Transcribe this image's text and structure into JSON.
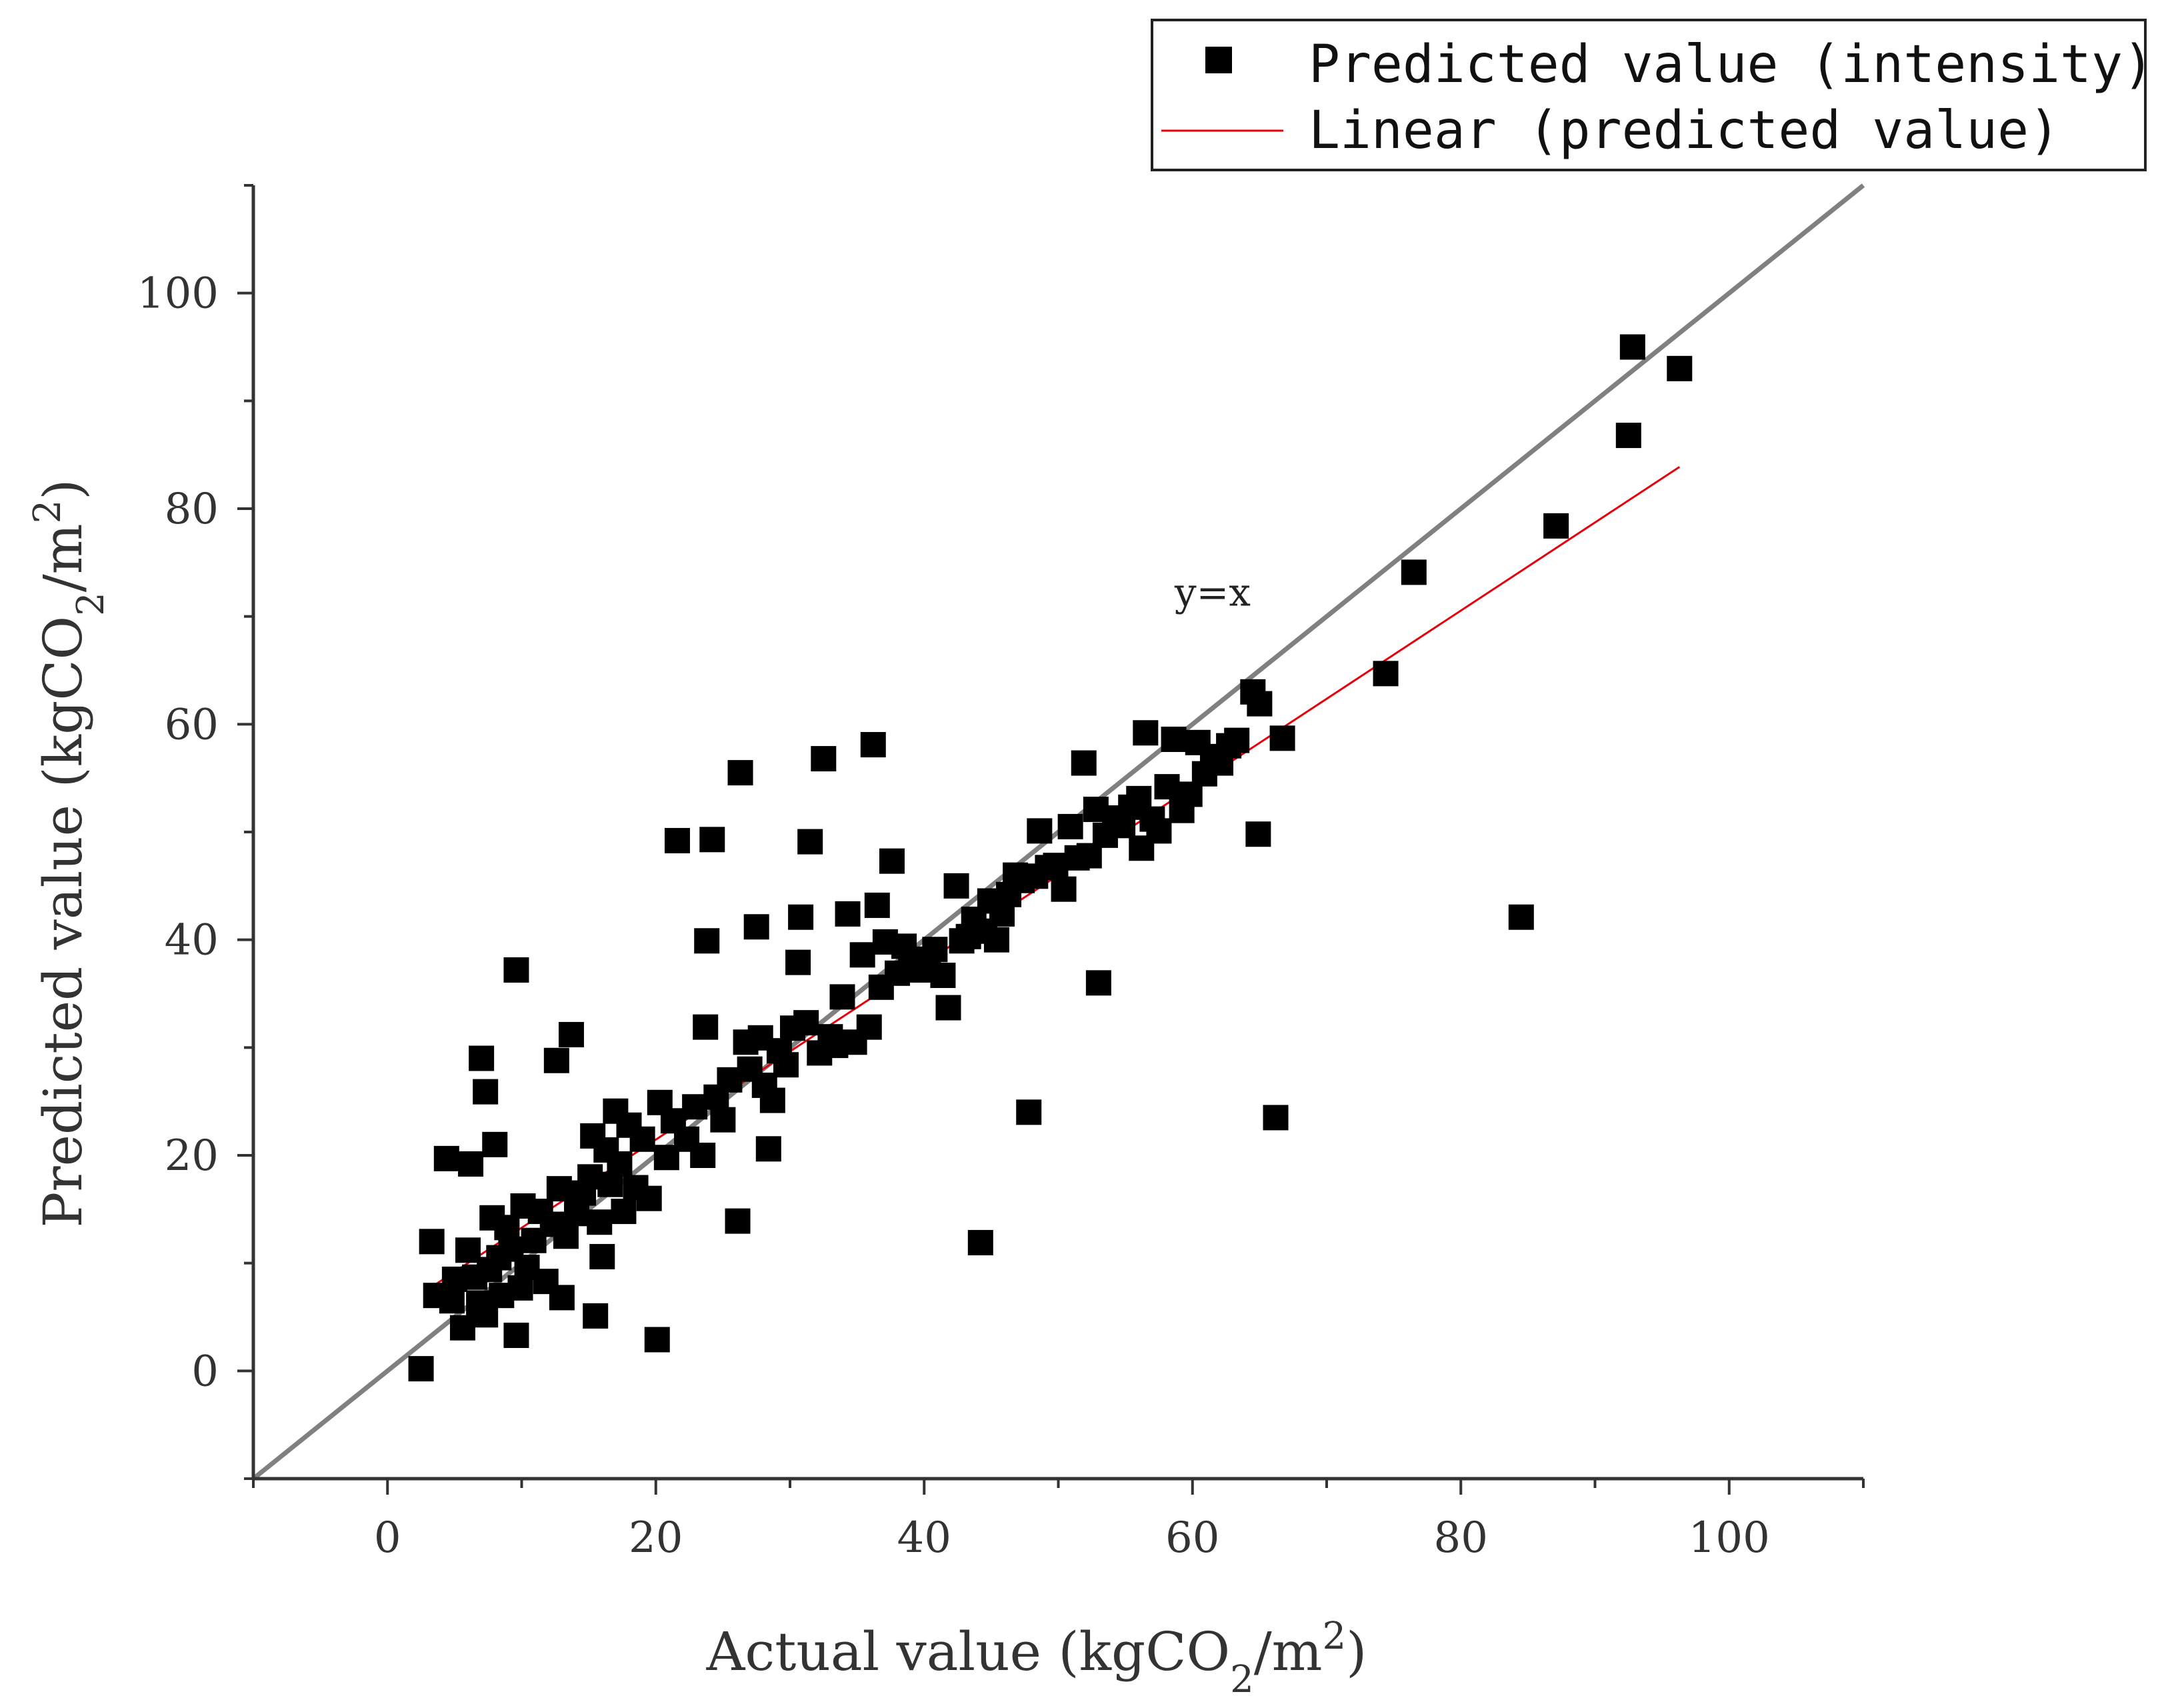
{
  "chart_data": {
    "type": "scatter",
    "title": "",
    "xlabel": "Actual value (kgCO2/m2)",
    "ylabel": "Predicted value (kgCO2/m2)",
    "xlabel_parts": {
      "pre": "Actual value (kgCO",
      "sub": "2",
      "mid": "/m",
      "sup": "2",
      "post": ")"
    },
    "ylabel_parts": {
      "pre": "Predicted value (kgCO",
      "sub": "2",
      "mid": "/m",
      "sup": "2",
      "post": ")"
    },
    "xlim": [
      -10,
      110
    ],
    "ylim": [
      -10,
      110
    ],
    "x_ticks": [
      0,
      20,
      40,
      60,
      80,
      100
    ],
    "y_ticks": [
      0,
      20,
      40,
      60,
      80,
      100
    ],
    "x_tick_labels": [
      "0",
      "20",
      "40",
      "60",
      "80",
      "100"
    ],
    "y_tick_labels": [
      "0",
      "20",
      "40",
      "60",
      "80",
      "100"
    ],
    "grid": false,
    "legend_position": "top-right, outside plot",
    "colors": {
      "points": "#000000",
      "fit_line": "#e8000b",
      "identity_line": "#808080",
      "axis": "#333333"
    },
    "series": [
      {
        "name": "Predicted value (intensity)",
        "kind": "scatter",
        "marker": "square",
        "points": [
          [
            2.5,
            0.2
          ],
          [
            3.3,
            12.0
          ],
          [
            3.6,
            7.0
          ],
          [
            4.4,
            19.7
          ],
          [
            4.8,
            6.5
          ],
          [
            5.0,
            8.5
          ],
          [
            5.6,
            4.0
          ],
          [
            6.0,
            11.2
          ],
          [
            6.2,
            19.2
          ],
          [
            6.5,
            8.7
          ],
          [
            6.8,
            6.3
          ],
          [
            7.0,
            29.0
          ],
          [
            7.3,
            25.9
          ],
          [
            7.3,
            5.2
          ],
          [
            7.6,
            9.4
          ],
          [
            7.8,
            14.2
          ],
          [
            8.0,
            21.0
          ],
          [
            8.3,
            10.5
          ],
          [
            8.5,
            7.0
          ],
          [
            8.9,
            13.3
          ],
          [
            9.2,
            11.3
          ],
          [
            9.6,
            37.2
          ],
          [
            9.6,
            3.3
          ],
          [
            9.9,
            7.7
          ],
          [
            10.1,
            15.3
          ],
          [
            10.4,
            9.6
          ],
          [
            10.9,
            12.1
          ],
          [
            11.4,
            14.8
          ],
          [
            11.8,
            8.3
          ],
          [
            12.3,
            13.6
          ],
          [
            12.6,
            28.8
          ],
          [
            12.8,
            16.9
          ],
          [
            13.0,
            6.8
          ],
          [
            13.3,
            12.5
          ],
          [
            13.7,
            31.2
          ],
          [
            14.1,
            14.6
          ],
          [
            14.6,
            16.5
          ],
          [
            15.1,
            18.0
          ],
          [
            15.3,
            21.8
          ],
          [
            15.5,
            5.1
          ],
          [
            15.8,
            13.8
          ],
          [
            16.0,
            10.6
          ],
          [
            16.3,
            20.5
          ],
          [
            16.6,
            17.3
          ],
          [
            17.0,
            24.1
          ],
          [
            17.3,
            19.2
          ],
          [
            17.6,
            14.8
          ],
          [
            18.0,
            22.8
          ],
          [
            18.5,
            17.0
          ],
          [
            19.0,
            21.5
          ],
          [
            19.5,
            16.0
          ],
          [
            20.1,
            2.9
          ],
          [
            20.3,
            24.9
          ],
          [
            20.8,
            19.8
          ],
          [
            21.3,
            23.2
          ],
          [
            21.6,
            49.2
          ],
          [
            22.3,
            21.5
          ],
          [
            22.9,
            24.5
          ],
          [
            23.5,
            20.0
          ],
          [
            23.7,
            31.9
          ],
          [
            23.8,
            39.9
          ],
          [
            24.2,
            49.3
          ],
          [
            24.5,
            25.4
          ],
          [
            25.0,
            23.3
          ],
          [
            25.5,
            27.0
          ],
          [
            26.1,
            13.9
          ],
          [
            26.3,
            55.5
          ],
          [
            26.7,
            30.5
          ],
          [
            27.0,
            28.0
          ],
          [
            27.5,
            41.2
          ],
          [
            27.8,
            30.9
          ],
          [
            28.1,
            26.5
          ],
          [
            28.4,
            20.6
          ],
          [
            28.7,
            25.1
          ],
          [
            29.2,
            29.7
          ],
          [
            29.7,
            28.4
          ],
          [
            30.2,
            31.8
          ],
          [
            30.6,
            37.9
          ],
          [
            30.8,
            42.1
          ],
          [
            31.2,
            32.3
          ],
          [
            31.5,
            49.1
          ],
          [
            32.2,
            29.5
          ],
          [
            32.5,
            56.8
          ],
          [
            33.0,
            31.0
          ],
          [
            33.4,
            30.2
          ],
          [
            33.9,
            34.7
          ],
          [
            34.3,
            42.4
          ],
          [
            34.8,
            30.5
          ],
          [
            35.4,
            38.6
          ],
          [
            35.9,
            31.9
          ],
          [
            36.2,
            58.1
          ],
          [
            36.5,
            43.2
          ],
          [
            36.8,
            35.6
          ],
          [
            37.1,
            39.8
          ],
          [
            37.6,
            47.3
          ],
          [
            38.0,
            36.9
          ],
          [
            38.5,
            39.4
          ],
          [
            39.0,
            37.6
          ],
          [
            39.6,
            37.2
          ],
          [
            40.3,
            38.2
          ],
          [
            40.8,
            39.1
          ],
          [
            41.4,
            36.7
          ],
          [
            41.8,
            33.7
          ],
          [
            42.4,
            45.0
          ],
          [
            42.8,
            39.9
          ],
          [
            43.3,
            40.3
          ],
          [
            43.7,
            41.9
          ],
          [
            44.2,
            11.9
          ],
          [
            44.5,
            40.8
          ],
          [
            44.9,
            43.6
          ],
          [
            45.4,
            40.0
          ],
          [
            45.8,
            42.4
          ],
          [
            46.3,
            44.2
          ],
          [
            46.8,
            46.0
          ],
          [
            47.3,
            45.5
          ],
          [
            47.8,
            24.0
          ],
          [
            48.3,
            45.9
          ],
          [
            48.6,
            50.1
          ],
          [
            49.2,
            46.7
          ],
          [
            49.8,
            46.9
          ],
          [
            50.4,
            44.7
          ],
          [
            50.9,
            50.5
          ],
          [
            51.4,
            47.6
          ],
          [
            51.9,
            56.4
          ],
          [
            52.3,
            47.8
          ],
          [
            52.8,
            52.1
          ],
          [
            53.0,
            36.0
          ],
          [
            53.5,
            49.7
          ],
          [
            54.2,
            51.3
          ],
          [
            54.8,
            50.6
          ],
          [
            55.4,
            52.3
          ],
          [
            56.0,
            53.1
          ],
          [
            56.2,
            48.5
          ],
          [
            56.5,
            59.2
          ],
          [
            57.0,
            51.2
          ],
          [
            57.5,
            50.1
          ],
          [
            58.1,
            54.2
          ],
          [
            58.6,
            58.6
          ],
          [
            59.2,
            52.0
          ],
          [
            59.8,
            53.5
          ],
          [
            60.4,
            58.3
          ],
          [
            60.9,
            55.4
          ],
          [
            61.5,
            57.0
          ],
          [
            62.1,
            56.4
          ],
          [
            62.7,
            58.0
          ],
          [
            63.3,
            58.5
          ],
          [
            64.5,
            63.0
          ],
          [
            64.9,
            49.8
          ],
          [
            65.0,
            61.9
          ],
          [
            66.2,
            23.5
          ],
          [
            66.7,
            58.7
          ],
          [
            74.4,
            64.7
          ],
          [
            76.5,
            74.1
          ],
          [
            84.5,
            42.1
          ],
          [
            87.1,
            78.4
          ],
          [
            92.5,
            86.8
          ],
          [
            92.8,
            95.0
          ],
          [
            96.3,
            93.0
          ]
        ]
      },
      {
        "name": "Linear (predicted value)",
        "kind": "line",
        "x_range": [
          3.3,
          96.3
        ],
        "slope": 0.818,
        "intercept": 5.1
      },
      {
        "name": "",
        "kind": "line",
        "x_range": [
          -10,
          110
        ],
        "slope": 1,
        "intercept": 0
      }
    ],
    "annotations": [
      {
        "text": "y=x",
        "x": 61.5,
        "y": 71
      }
    ],
    "legend": [
      {
        "label": "Predicted value (intensity)",
        "symbol": "square"
      },
      {
        "label": "Linear (predicted value)",
        "symbol": "line"
      }
    ]
  }
}
